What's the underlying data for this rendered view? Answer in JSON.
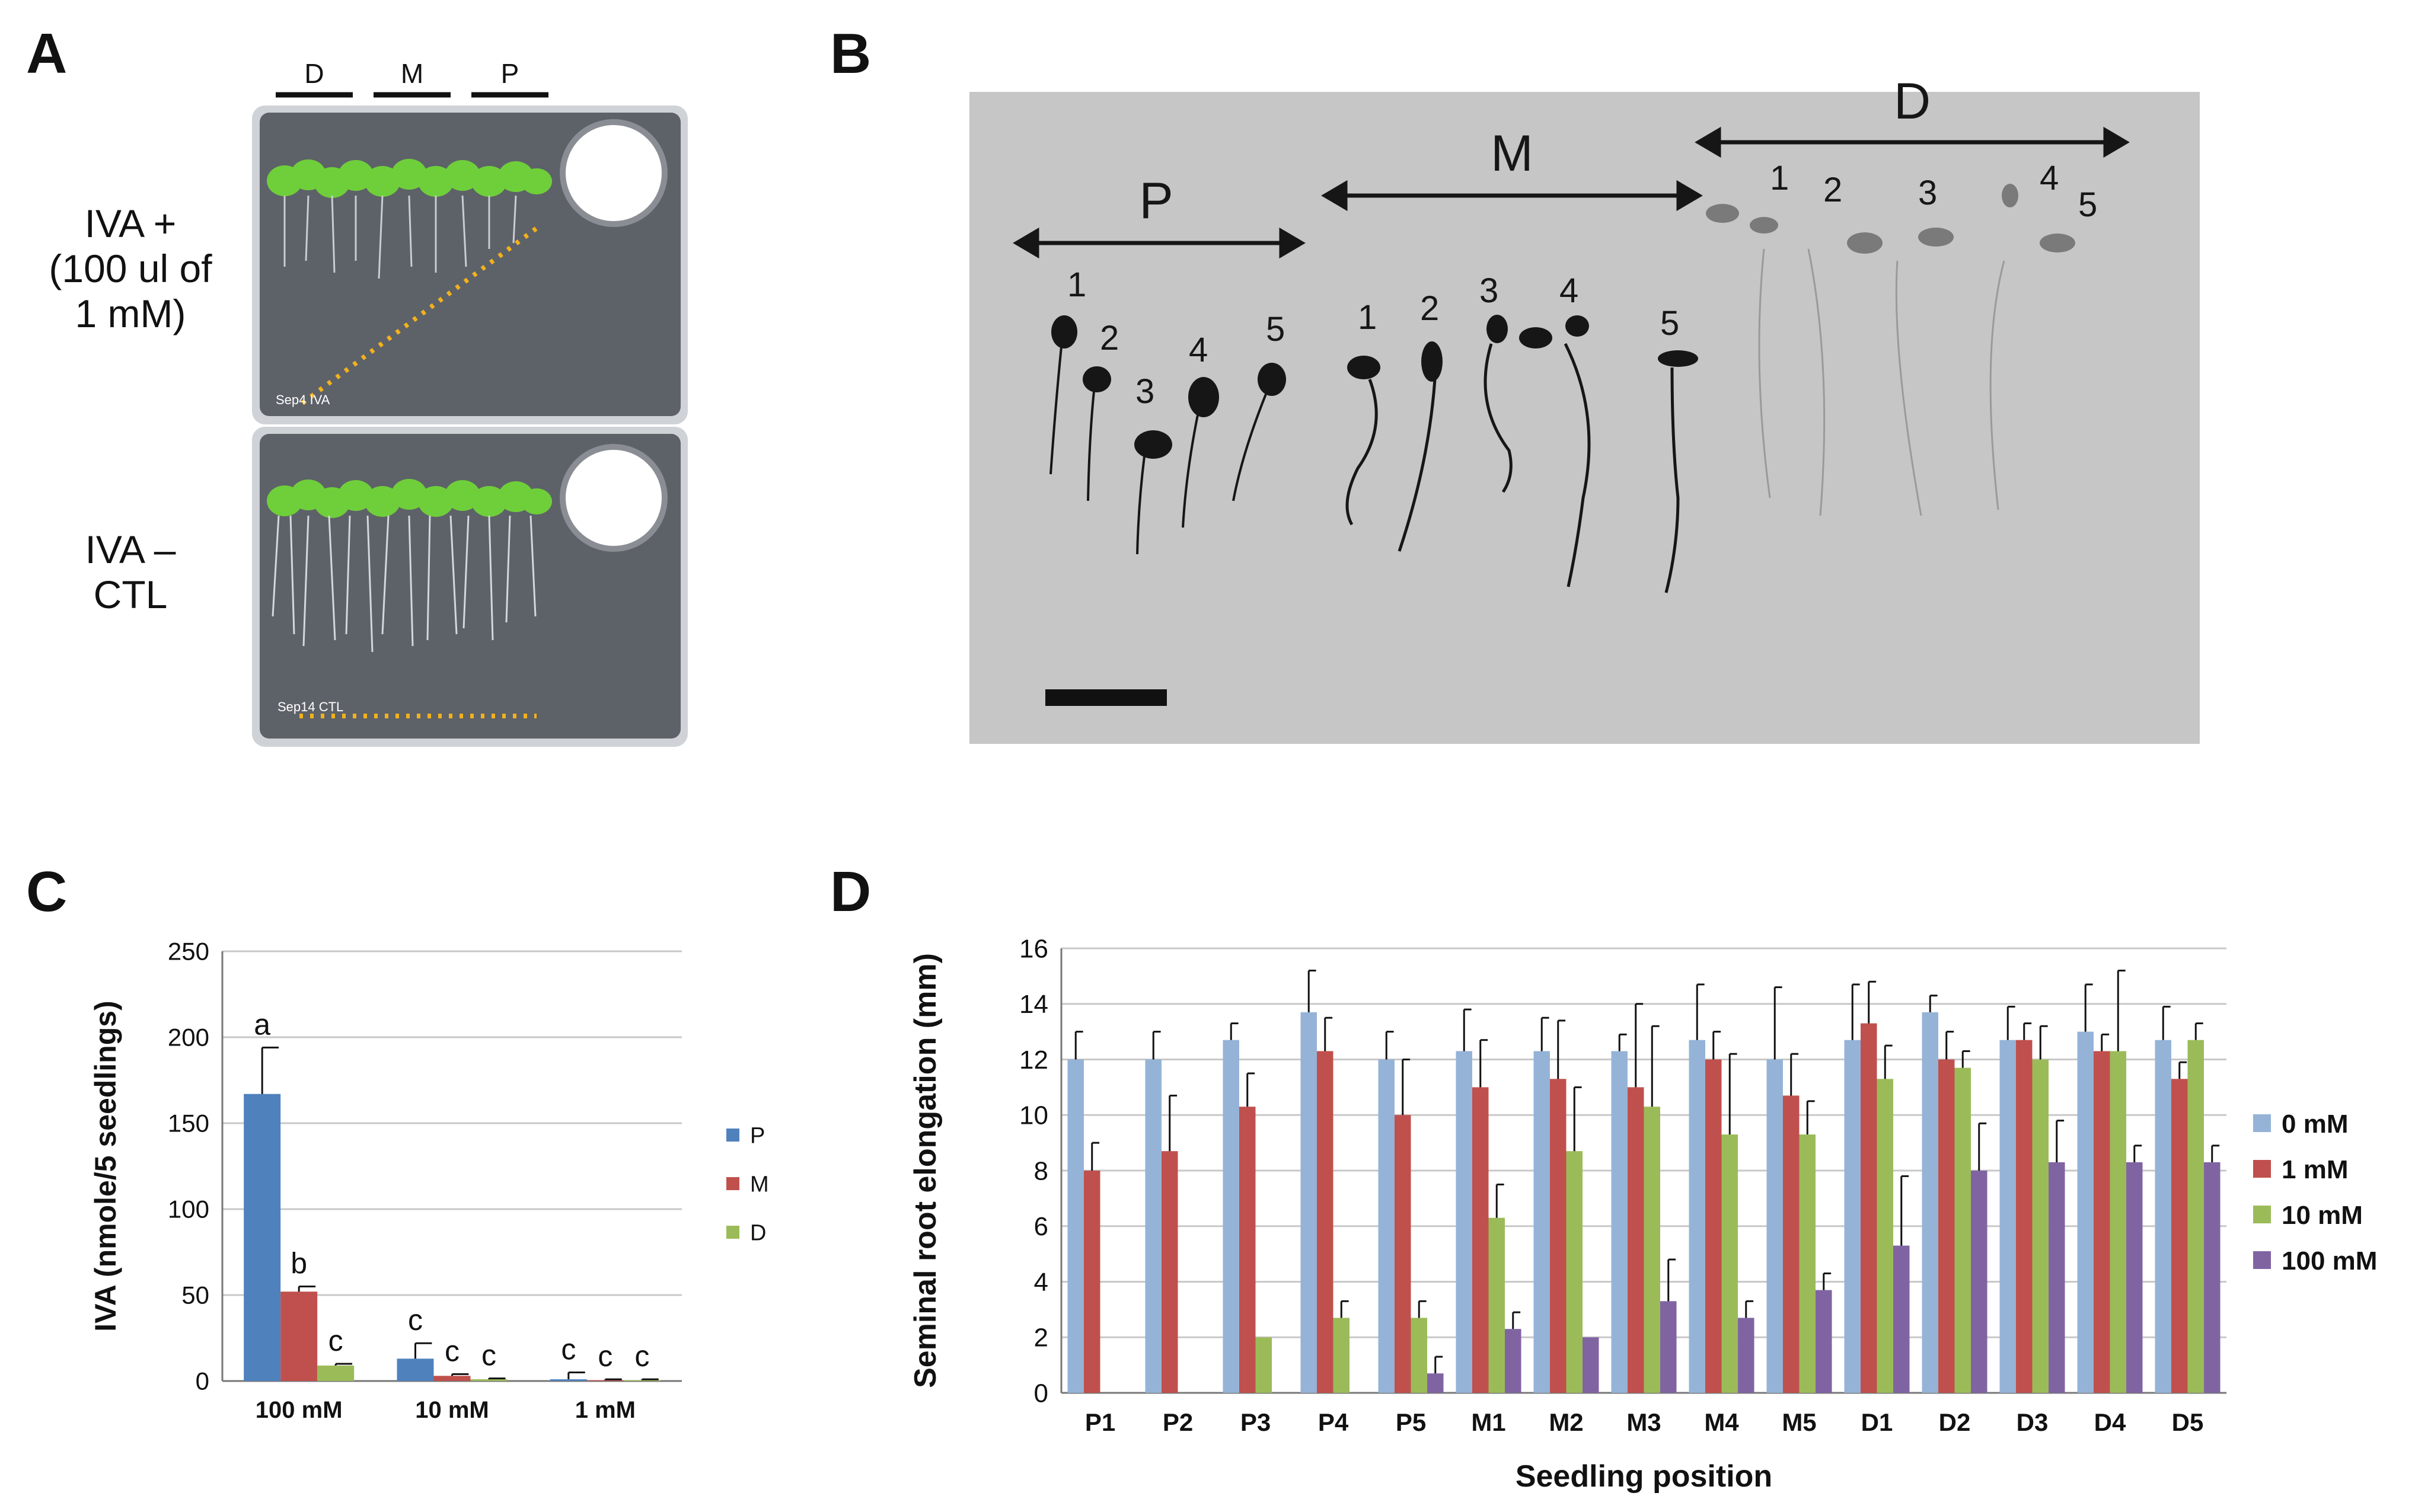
{
  "panels": {
    "a": "A",
    "b": "B",
    "c": "C",
    "d": "D"
  },
  "panel_a": {
    "columns": [
      "D",
      "M",
      "P"
    ],
    "top_label": [
      "IVA +",
      "(100 ul of",
      "1 mM)"
    ],
    "bottom_label": [
      "IVA –",
      "CTL"
    ],
    "plate_top_note": "Sep4 IVA",
    "plate_bottom_note": "Sep14 CTL",
    "colors": {
      "plate": "#5d6168",
      "seedling": "#6fcf3a",
      "dotline": "#f2b11c"
    }
  },
  "panel_b": {
    "groups": [
      "P",
      "M",
      "D"
    ],
    "seedling_numbers": [
      "1",
      "2",
      "3",
      "4",
      "5"
    ],
    "colors": {
      "background": "#c6c6c6",
      "seedling": "#161616"
    }
  },
  "chart_data": [
    {
      "id": "C",
      "type": "bar",
      "ylabel": "IVA (nmole/5 seedlings)",
      "xlabel": "",
      "categories": [
        "100 mM",
        "10 mM",
        "1 mM"
      ],
      "ylim": [
        0,
        250
      ],
      "yticks": [
        0,
        50,
        100,
        150,
        200,
        250
      ],
      "grid": true,
      "legend_position": "right",
      "series": [
        {
          "name": "P",
          "color": "#4f81bd",
          "values": [
            167,
            13,
            1
          ],
          "errors": [
            27,
            9,
            4
          ],
          "letters": [
            "a",
            "c",
            "c"
          ]
        },
        {
          "name": "M",
          "color": "#c0504d",
          "values": [
            52,
            3,
            0.5
          ],
          "errors": [
            3,
            1,
            0.5
          ],
          "letters": [
            "b",
            "c",
            "c"
          ]
        },
        {
          "name": "D",
          "color": "#9bbb59",
          "values": [
            9,
            1,
            0.5
          ],
          "errors": [
            1,
            0.5,
            0.5
          ],
          "letters": [
            "c",
            "c",
            "c"
          ]
        }
      ]
    },
    {
      "id": "D",
      "type": "bar",
      "ylabel": "Seminal root elongation (mm)",
      "xlabel": "Seedling position",
      "categories": [
        "P1",
        "P2",
        "P3",
        "P4",
        "P5",
        "M1",
        "M2",
        "M3",
        "M4",
        "M5",
        "D1",
        "D2",
        "D3",
        "D4",
        "D5"
      ],
      "ylim": [
        0,
        16
      ],
      "yticks": [
        0,
        2,
        4,
        6,
        8,
        10,
        12,
        14,
        16
      ],
      "grid": true,
      "legend_position": "right",
      "series": [
        {
          "name": "0 mM",
          "color": "#95b3d7",
          "values": [
            12.0,
            12.0,
            12.7,
            13.7,
            12.0,
            12.3,
            12.3,
            12.3,
            12.7,
            12.0,
            12.7,
            13.7,
            12.7,
            13.0,
            12.7
          ],
          "errors": [
            1.0,
            1.0,
            0.6,
            1.5,
            1.0,
            1.5,
            1.2,
            0.6,
            2.0,
            2.6,
            2.0,
            0.6,
            1.2,
            1.7,
            1.2
          ]
        },
        {
          "name": "1 mM",
          "color": "#c0504d",
          "values": [
            8.0,
            8.7,
            10.3,
            12.3,
            10.0,
            11.0,
            11.3,
            11.0,
            12.0,
            10.7,
            13.3,
            12.0,
            12.7,
            12.3,
            11.3
          ],
          "errors": [
            1.0,
            2.0,
            1.2,
            1.2,
            2.0,
            1.7,
            2.1,
            3.0,
            1.0,
            1.5,
            1.5,
            1.0,
            0.6,
            0.6,
            0.6
          ]
        },
        {
          "name": "10 mM",
          "color": "#9bbb59",
          "values": [
            0,
            0,
            2.0,
            2.7,
            2.7,
            6.3,
            8.7,
            10.3,
            9.3,
            9.3,
            11.3,
            11.7,
            12.0,
            12.3,
            12.7
          ],
          "errors": [
            0,
            0,
            0,
            0.6,
            0.6,
            1.2,
            2.3,
            2.9,
            2.9,
            1.2,
            1.2,
            0.6,
            1.2,
            2.9,
            0.6
          ]
        },
        {
          "name": "100 mM",
          "color": "#8064a2",
          "values": [
            0,
            0,
            0,
            0,
            0.7,
            2.3,
            2.0,
            3.3,
            2.7,
            3.7,
            5.3,
            8.0,
            8.3,
            8.3,
            8.3
          ],
          "errors": [
            0,
            0,
            0,
            0,
            0.6,
            0.6,
            0,
            1.5,
            0.6,
            0.6,
            2.5,
            1.7,
            1.5,
            0.6,
            0.6
          ]
        }
      ]
    }
  ]
}
